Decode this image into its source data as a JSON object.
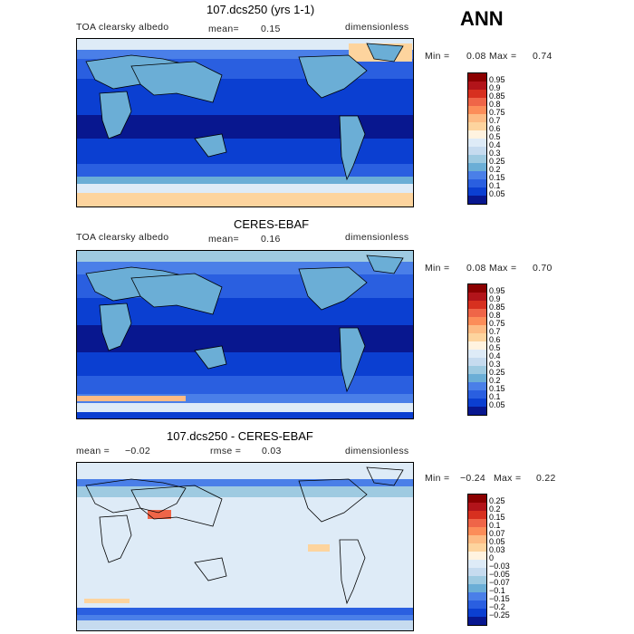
{
  "season": "ANN",
  "panels": [
    {
      "id": "model",
      "title": "107.dcs250 (yrs 1-1)",
      "left_label": "TOA clearsky albedo",
      "mid_label": "mean=",
      "mid_value": "0.15",
      "right_label": "dimensionless",
      "min_label": "Min =",
      "min_value": "0.08",
      "max_label": "Max =",
      "max_value": "0.74",
      "colorbar_labels": [
        "0.95",
        "0.9",
        "0.85",
        "0.8",
        "0.75",
        "0.7",
        "0.6",
        "0.5",
        "0.4",
        "0.3",
        "0.25",
        "0.2",
        "0.15",
        "0.1",
        "0.05"
      ],
      "colorbar_colors": [
        "#8b0000",
        "#b2141a",
        "#d7301f",
        "#ef6548",
        "#fc8d59",
        "#fdbb84",
        "#fdd49e",
        "#fff3e0",
        "#deebf7",
        "#c6dbef",
        "#9ecae1",
        "#6baed6",
        "#4a7fe8",
        "#2a5fe0",
        "#0b3fd1",
        "#08178f"
      ]
    },
    {
      "id": "obs",
      "title": "CERES-EBAF",
      "left_label": "TOA clearsky albedo",
      "mid_label": "mean=",
      "mid_value": "0.16",
      "right_label": "dimensionless",
      "min_label": "Min =",
      "min_value": "0.08",
      "max_label": "Max =",
      "max_value": "0.70",
      "colorbar_labels": [
        "0.95",
        "0.9",
        "0.85",
        "0.8",
        "0.75",
        "0.7",
        "0.6",
        "0.5",
        "0.4",
        "0.3",
        "0.25",
        "0.2",
        "0.15",
        "0.1",
        "0.05"
      ],
      "colorbar_colors": [
        "#8b0000",
        "#b2141a",
        "#d7301f",
        "#ef6548",
        "#fc8d59",
        "#fdbb84",
        "#fdd49e",
        "#fff3e0",
        "#deebf7",
        "#c6dbef",
        "#9ecae1",
        "#6baed6",
        "#4a7fe8",
        "#2a5fe0",
        "#0b3fd1",
        "#08178f"
      ]
    },
    {
      "id": "diff",
      "title": "107.dcs250 - CERES-EBAF",
      "left_label": "mean =",
      "left_value": "−0.02",
      "mid_label": "rmse =",
      "mid_value": "0.03",
      "right_label": "dimensionless",
      "min_label": "Min =",
      "min_value": "−0.24",
      "max_label": "Max =",
      "max_value": "0.22",
      "colorbar_labels": [
        "0.25",
        "0.2",
        "0.15",
        "0.1",
        "0.07",
        "0.05",
        "0.03",
        "0",
        "−0.03",
        "−0.05",
        "−0.07",
        "−0.1",
        "−0.15",
        "−0.2",
        "−0.25"
      ],
      "colorbar_colors": [
        "#8b0000",
        "#b2141a",
        "#d7301f",
        "#ef6548",
        "#fc8d59",
        "#fdbb84",
        "#fdd49e",
        "#fff3e0",
        "#deebf7",
        "#c6dbef",
        "#9ecae1",
        "#6baed6",
        "#4a7fe8",
        "#2a5fe0",
        "#0b3fd1",
        "#08178f"
      ]
    }
  ]
}
